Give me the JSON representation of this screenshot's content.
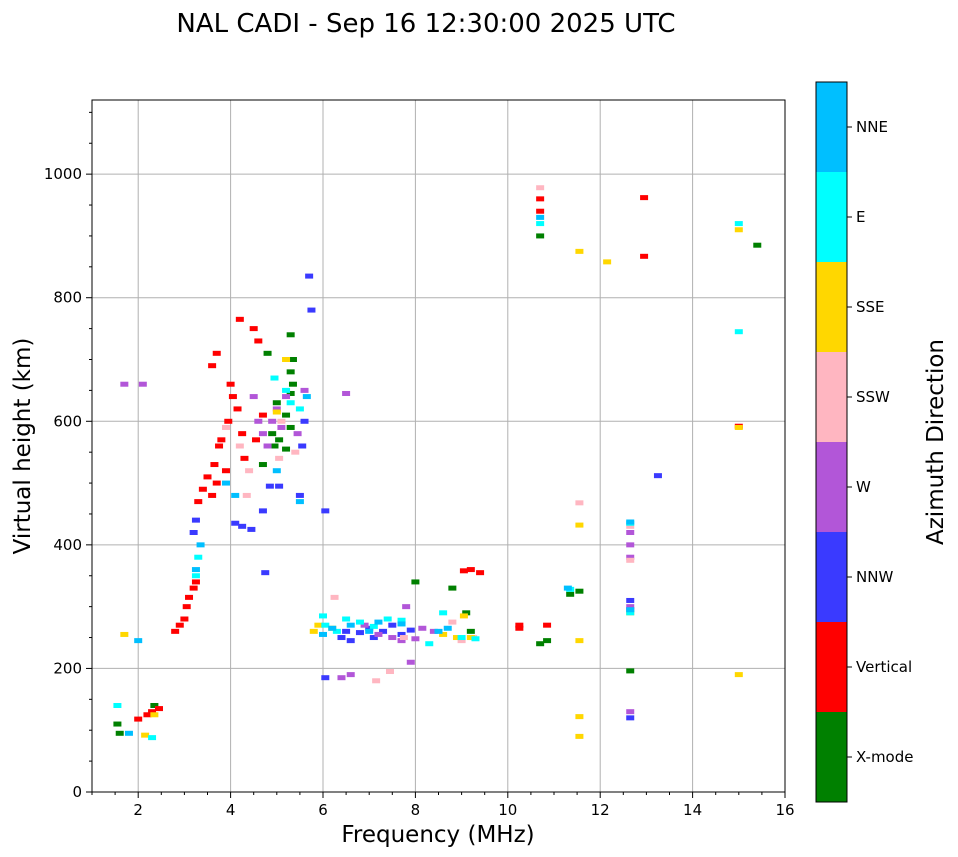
{
  "chart_data": {
    "type": "scatter",
    "title": "NAL CADI - Sep 16 12:30:00 2025 UTC",
    "xlabel": "Frequency (MHz)",
    "ylabel": "Virtual height (km)",
    "xlim": [
      1,
      16
    ],
    "ylim": [
      0,
      1120
    ],
    "xticks": [
      2,
      4,
      6,
      8,
      10,
      12,
      14,
      16
    ],
    "yticks": [
      0,
      200,
      400,
      600,
      800,
      1000
    ],
    "grid": true,
    "colorbar": {
      "title": "Azimuth Direction",
      "categories": [
        "X-mode",
        "Vertical",
        "NNW",
        "W",
        "SSW",
        "SSE",
        "E",
        "NNE"
      ],
      "colors": [
        "#008000",
        "#ff0000",
        "#3a3aff",
        "#b256d8",
        "#ffb6c1",
        "#ffd700",
        "#00ffff",
        "#00bfff"
      ]
    },
    "series": [
      {
        "name": "X-mode",
        "points": [
          [
            5.3,
            740
          ],
          [
            4.8,
            710
          ],
          [
            5.35,
            700
          ],
          [
            5.3,
            680
          ],
          [
            5.35,
            660
          ],
          [
            5.3,
            645
          ],
          [
            5.0,
            630
          ],
          [
            5.2,
            610
          ],
          [
            5.3,
            590
          ],
          [
            4.9,
            580
          ],
          [
            5.05,
            570
          ],
          [
            4.95,
            560
          ],
          [
            5.2,
            555
          ],
          [
            4.7,
            530
          ],
          [
            8.0,
            340
          ],
          [
            8.8,
            330
          ],
          [
            9.1,
            290
          ],
          [
            9.2,
            260
          ],
          [
            10.7,
            900
          ],
          [
            10.85,
            245
          ],
          [
            10.7,
            240
          ],
          [
            11.35,
            320
          ],
          [
            11.55,
            325
          ],
          [
            12.65,
            196
          ],
          [
            15.4,
            885
          ],
          [
            1.55,
            110
          ],
          [
            1.6,
            95
          ],
          [
            2.35,
            140
          ]
        ]
      },
      {
        "name": "Vertical",
        "points": [
          [
            2.8,
            260
          ],
          [
            2.9,
            270
          ],
          [
            3.0,
            280
          ],
          [
            3.05,
            300
          ],
          [
            3.1,
            315
          ],
          [
            3.2,
            330
          ],
          [
            3.25,
            340
          ],
          [
            3.3,
            470
          ],
          [
            3.4,
            490
          ],
          [
            3.5,
            510
          ],
          [
            3.6,
            480
          ],
          [
            3.65,
            530
          ],
          [
            3.7,
            500
          ],
          [
            3.75,
            560
          ],
          [
            3.8,
            570
          ],
          [
            3.9,
            520
          ],
          [
            3.95,
            600
          ],
          [
            4.05,
            640
          ],
          [
            4.0,
            660
          ],
          [
            4.15,
            620
          ],
          [
            4.25,
            580
          ],
          [
            4.3,
            540
          ],
          [
            3.6,
            690
          ],
          [
            3.7,
            710
          ],
          [
            4.2,
            765
          ],
          [
            4.5,
            750
          ],
          [
            4.6,
            730
          ],
          [
            4.7,
            610
          ],
          [
            4.55,
            570
          ],
          [
            9.2,
            360
          ],
          [
            9.4,
            355
          ],
          [
            9.05,
            358
          ],
          [
            10.25,
            270
          ],
          [
            10.25,
            265
          ],
          [
            10.85,
            270
          ],
          [
            10.7,
            960
          ],
          [
            10.7,
            940
          ],
          [
            12.95,
            962
          ],
          [
            12.95,
            867
          ],
          [
            15.0,
            592
          ],
          [
            2.2,
            125
          ],
          [
            2.3,
            130
          ],
          [
            2.0,
            118
          ],
          [
            2.45,
            135
          ]
        ]
      },
      {
        "name": "NNW",
        "points": [
          [
            3.2,
            420
          ],
          [
            3.25,
            440
          ],
          [
            4.1,
            435
          ],
          [
            4.25,
            430
          ],
          [
            4.45,
            425
          ],
          [
            4.7,
            455
          ],
          [
            4.75,
            355
          ],
          [
            4.85,
            495
          ],
          [
            5.05,
            495
          ],
          [
            5.5,
            480
          ],
          [
            5.55,
            560
          ],
          [
            5.6,
            600
          ],
          [
            5.7,
            835
          ],
          [
            5.75,
            780
          ],
          [
            6.05,
            455
          ],
          [
            6.05,
            185
          ],
          [
            6.4,
            250
          ],
          [
            6.5,
            260
          ],
          [
            6.6,
            245
          ],
          [
            6.8,
            258
          ],
          [
            7.0,
            265
          ],
          [
            7.1,
            250
          ],
          [
            7.3,
            260
          ],
          [
            7.5,
            270
          ],
          [
            7.7,
            255
          ],
          [
            7.9,
            262
          ],
          [
            12.65,
            120
          ],
          [
            12.65,
            295
          ],
          [
            12.65,
            310
          ],
          [
            13.25,
            512
          ]
        ]
      },
      {
        "name": "W",
        "points": [
          [
            4.5,
            640
          ],
          [
            4.6,
            600
          ],
          [
            4.7,
            580
          ],
          [
            4.8,
            560
          ],
          [
            4.9,
            600
          ],
          [
            5.0,
            620
          ],
          [
            5.1,
            590
          ],
          [
            5.2,
            640
          ],
          [
            5.45,
            580
          ],
          [
            5.6,
            650
          ],
          [
            6.5,
            645
          ],
          [
            6.4,
            185
          ],
          [
            6.6,
            190
          ],
          [
            6.9,
            270
          ],
          [
            7.2,
            255
          ],
          [
            7.5,
            250
          ],
          [
            7.7,
            245
          ],
          [
            7.8,
            300
          ],
          [
            7.9,
            210
          ],
          [
            8.0,
            248
          ],
          [
            8.15,
            265
          ],
          [
            8.4,
            260
          ],
          [
            12.65,
            130
          ],
          [
            12.65,
            380
          ],
          [
            12.65,
            400
          ],
          [
            12.65,
            420
          ],
          [
            12.65,
            300
          ],
          [
            1.7,
            660
          ],
          [
            2.1,
            660
          ]
        ]
      },
      {
        "name": "SSW",
        "points": [
          [
            3.9,
            590
          ],
          [
            4.2,
            560
          ],
          [
            4.4,
            520
          ],
          [
            4.35,
            480
          ],
          [
            5.05,
            540
          ],
          [
            5.4,
            550
          ],
          [
            5.1,
            600
          ],
          [
            6.25,
            315
          ],
          [
            7.15,
            180
          ],
          [
            7.45,
            195
          ],
          [
            7.75,
            250
          ],
          [
            8.8,
            275
          ],
          [
            9.0,
            245
          ],
          [
            9.25,
            250
          ],
          [
            10.7,
            978
          ],
          [
            11.55,
            468
          ],
          [
            12.65,
            430
          ],
          [
            12.65,
            375
          ]
        ]
      },
      {
        "name": "SSE",
        "points": [
          [
            5.0,
            615
          ],
          [
            5.2,
            700
          ],
          [
            5.8,
            260
          ],
          [
            5.9,
            270
          ],
          [
            6.2,
            265
          ],
          [
            8.6,
            255
          ],
          [
            8.9,
            250
          ],
          [
            9.05,
            285
          ],
          [
            9.2,
            250
          ],
          [
            11.55,
            875
          ],
          [
            12.15,
            858
          ],
          [
            15.0,
            910
          ],
          [
            15.0,
            590
          ],
          [
            15.0,
            190
          ],
          [
            11.55,
            432
          ],
          [
            11.55,
            245
          ],
          [
            11.55,
            122
          ],
          [
            11.55,
            90
          ],
          [
            1.7,
            255
          ],
          [
            2.35,
            125
          ],
          [
            2.15,
            92
          ],
          [
            12.65,
            290
          ]
        ]
      },
      {
        "name": "E",
        "points": [
          [
            3.3,
            380
          ],
          [
            3.25,
            350
          ],
          [
            4.95,
            670
          ],
          [
            5.2,
            650
          ],
          [
            5.3,
            630
          ],
          [
            5.5,
            620
          ],
          [
            6.0,
            285
          ],
          [
            6.05,
            270
          ],
          [
            6.3,
            260
          ],
          [
            6.5,
            280
          ],
          [
            6.8,
            275
          ],
          [
            7.1,
            268
          ],
          [
            7.4,
            280
          ],
          [
            7.7,
            278
          ],
          [
            8.3,
            240
          ],
          [
            8.6,
            290
          ],
          [
            9.0,
            250
          ],
          [
            9.3,
            248
          ],
          [
            10.7,
            920
          ],
          [
            11.35,
            328
          ],
          [
            12.65,
            290
          ],
          [
            12.65,
            435
          ],
          [
            15.0,
            745
          ],
          [
            15.0,
            920
          ],
          [
            1.55,
            140
          ],
          [
            2.3,
            88
          ]
        ]
      },
      {
        "name": "NNE",
        "points": [
          [
            3.25,
            360
          ],
          [
            3.35,
            400
          ],
          [
            3.9,
            500
          ],
          [
            4.1,
            480
          ],
          [
            5.0,
            520
          ],
          [
            5.5,
            470
          ],
          [
            5.65,
            640
          ],
          [
            6.0,
            255
          ],
          [
            6.2,
            265
          ],
          [
            6.6,
            270
          ],
          [
            7.0,
            260
          ],
          [
            7.2,
            275
          ],
          [
            7.7,
            272
          ],
          [
            8.5,
            260
          ],
          [
            8.7,
            265
          ],
          [
            10.7,
            930
          ],
          [
            11.3,
            330
          ],
          [
            12.65,
            437
          ],
          [
            12.65,
            295
          ],
          [
            2.0,
            245
          ],
          [
            1.8,
            95
          ]
        ]
      }
    ]
  }
}
